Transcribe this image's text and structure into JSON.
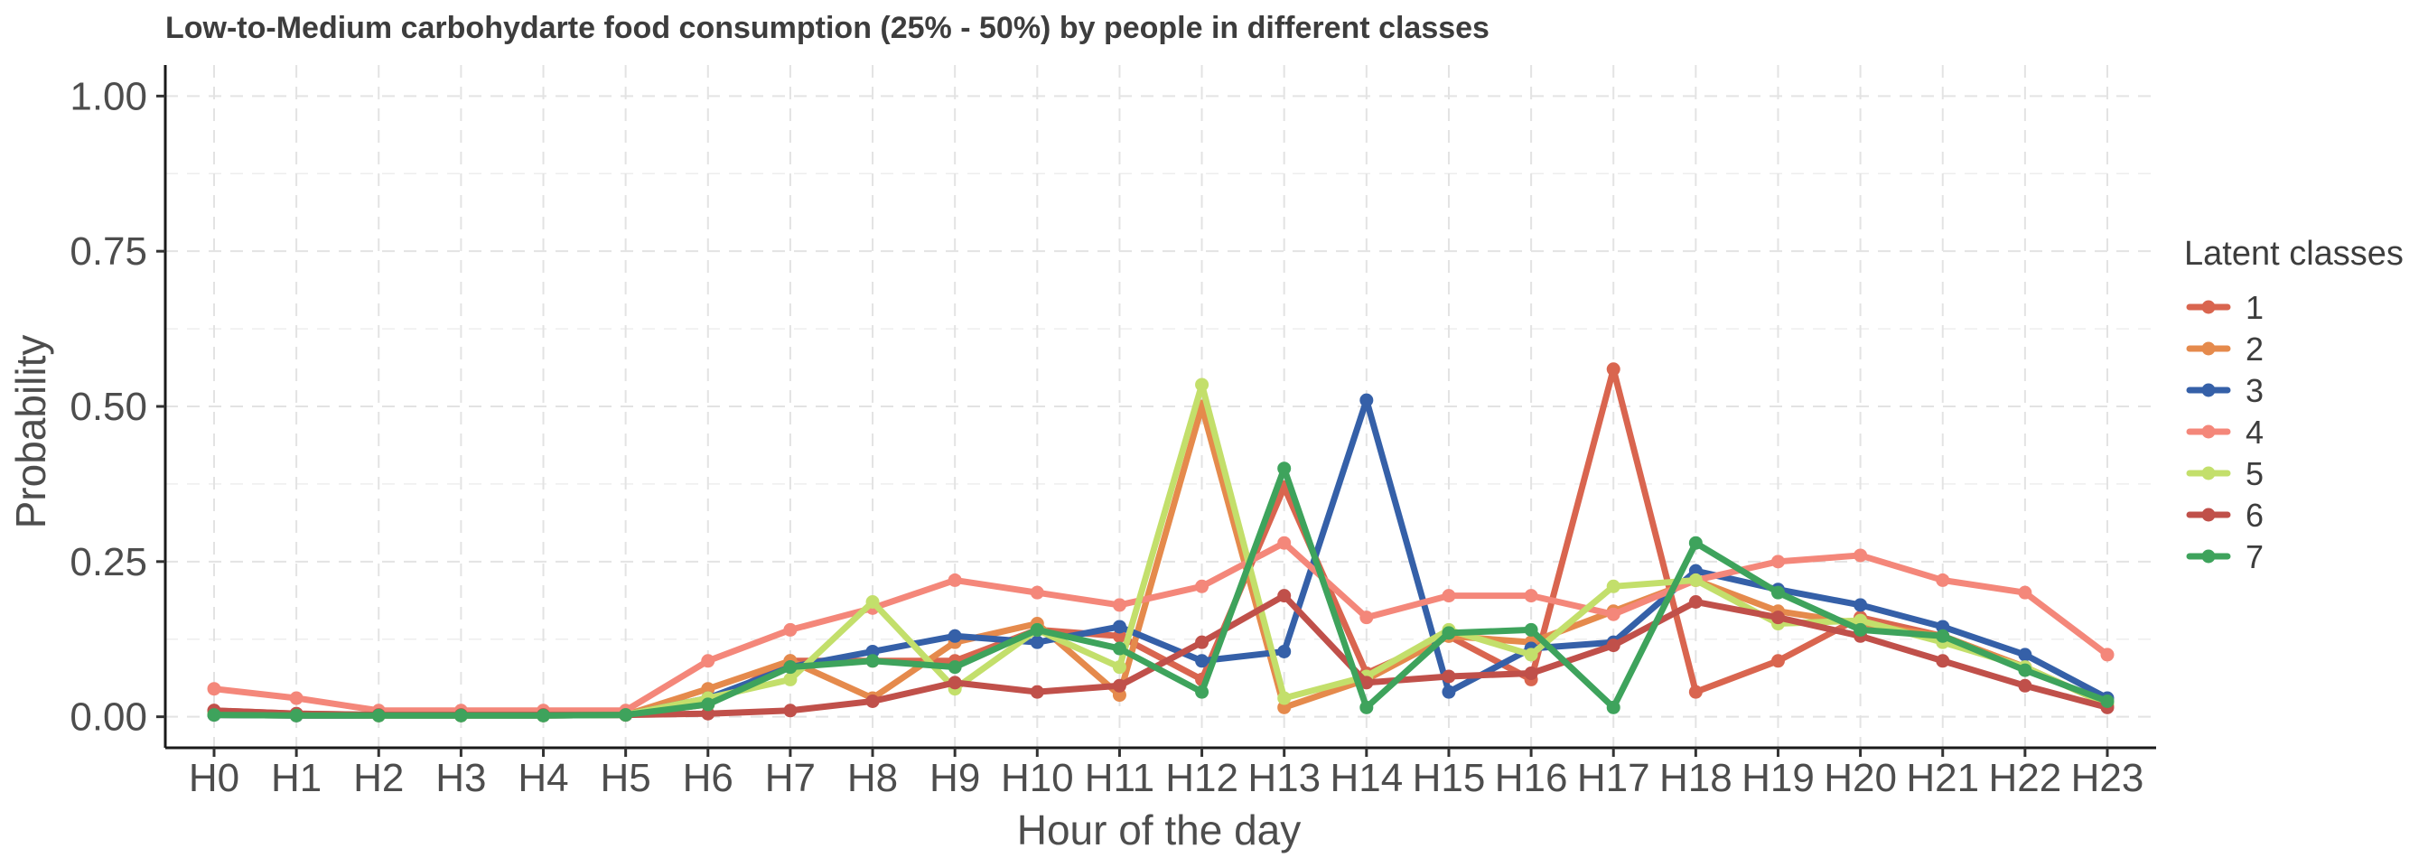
{
  "chart_data": {
    "type": "line",
    "title": "Low-to-Medium carbohydarte food consumption (25% - 50%) by people in different classes",
    "xlabel": "Hour of the day",
    "ylabel": "Probability",
    "ylim": [
      -0.05,
      1.05
    ],
    "yticks": [
      "0.00",
      "0.25",
      "0.50",
      "0.75",
      "1.00"
    ],
    "ytick_values": [
      0,
      0.25,
      0.5,
      0.75,
      1.0
    ],
    "categories": [
      "H0",
      "H1",
      "H2",
      "H3",
      "H4",
      "H5",
      "H6",
      "H7",
      "H8",
      "H9",
      "H10",
      "H11",
      "H12",
      "H13",
      "H14",
      "H15",
      "H16",
      "H17",
      "H18",
      "H19",
      "H20",
      "H21",
      "H22",
      "H23"
    ],
    "grid": true,
    "legend_title": "Latent classes",
    "legend_position": "right",
    "series": [
      {
        "name": "1",
        "color": "#d9654f",
        "values": [
          0.01,
          0.005,
          0.003,
          0.003,
          0.003,
          0.003,
          0.02,
          0.09,
          0.09,
          0.09,
          0.14,
          0.13,
          0.06,
          0.37,
          0.07,
          0.13,
          0.06,
          0.56,
          0.04,
          0.09,
          0.16,
          0.13,
          0.08,
          0.02
        ]
      },
      {
        "name": "2",
        "color": "#e58a4c",
        "values": [
          0.003,
          0.002,
          0.002,
          0.002,
          0.002,
          0.003,
          0.045,
          0.09,
          0.03,
          0.12,
          0.15,
          0.035,
          0.5,
          0.015,
          0.06,
          0.13,
          0.12,
          0.17,
          0.22,
          0.17,
          0.15,
          0.13,
          0.08,
          0.02
        ]
      },
      {
        "name": "3",
        "color": "#3560a8",
        "values": [
          0.003,
          0.002,
          0.002,
          0.002,
          0.002,
          0.003,
          0.03,
          0.08,
          0.105,
          0.13,
          0.12,
          0.145,
          0.09,
          0.105,
          0.51,
          0.04,
          0.11,
          0.12,
          0.235,
          0.205,
          0.18,
          0.145,
          0.1,
          0.03
        ]
      },
      {
        "name": "4",
        "color": "#f4877a",
        "values": [
          0.045,
          0.03,
          0.01,
          0.01,
          0.01,
          0.01,
          0.09,
          0.14,
          0.175,
          0.22,
          0.2,
          0.18,
          0.21,
          0.28,
          0.16,
          0.195,
          0.195,
          0.165,
          0.22,
          0.25,
          0.26,
          0.22,
          0.2,
          0.1
        ]
      },
      {
        "name": "5",
        "color": "#c3df6b",
        "values": [
          0.005,
          0.003,
          0.002,
          0.002,
          0.002,
          0.003,
          0.03,
          0.06,
          0.185,
          0.045,
          0.14,
          0.08,
          0.535,
          0.03,
          0.065,
          0.14,
          0.1,
          0.21,
          0.22,
          0.15,
          0.155,
          0.12,
          0.08,
          0.02
        ]
      },
      {
        "name": "6",
        "color": "#c0504a",
        "values": [
          0.01,
          0.005,
          0.003,
          0.003,
          0.003,
          0.003,
          0.005,
          0.01,
          0.025,
          0.055,
          0.04,
          0.05,
          0.12,
          0.195,
          0.055,
          0.065,
          0.07,
          0.115,
          0.185,
          0.16,
          0.13,
          0.09,
          0.05,
          0.015
        ]
      },
      {
        "name": "7",
        "color": "#3ea35c",
        "values": [
          0.003,
          0.002,
          0.002,
          0.002,
          0.002,
          0.003,
          0.02,
          0.08,
          0.09,
          0.08,
          0.14,
          0.11,
          0.04,
          0.4,
          0.015,
          0.135,
          0.14,
          0.015,
          0.28,
          0.2,
          0.14,
          0.13,
          0.075,
          0.025
        ]
      }
    ]
  }
}
